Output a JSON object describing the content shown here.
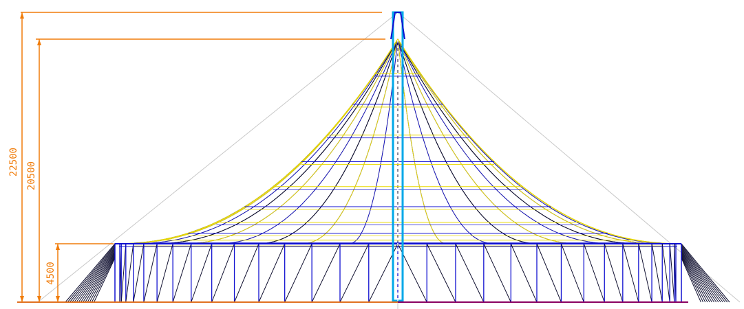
{
  "dimensions": {
    "overall_height": "22500",
    "cone_height": "20500",
    "wall_height": "4500"
  },
  "colors": {
    "dimension": "#f07c0a",
    "yellow_membrane": "#e8d800",
    "blue_frame": "#1010d0",
    "dark_cable": "#101030",
    "mast": "#00a8e8",
    "ground_left": "#e07020",
    "ground_right": "#8a0060",
    "guide": "#c8c8c8"
  },
  "icons": [
    "vertical-dimension-arrows",
    "center-mast"
  ]
}
